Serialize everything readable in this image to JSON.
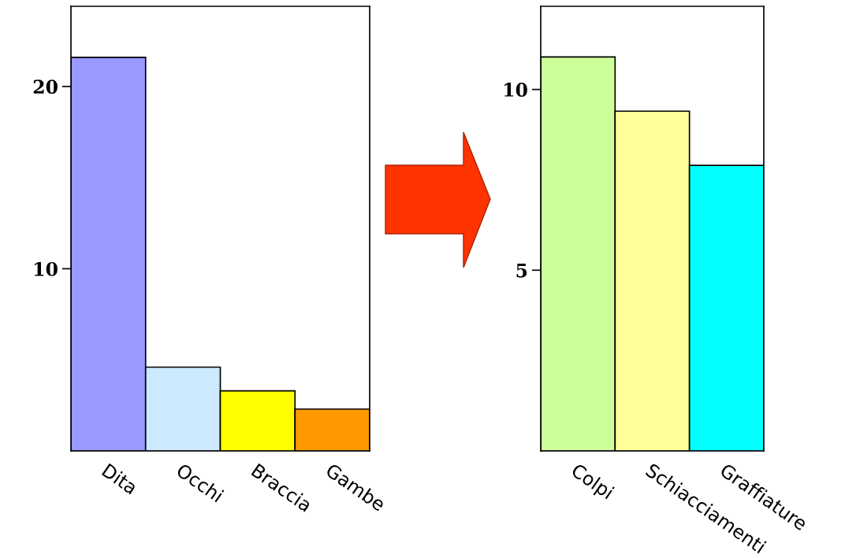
{
  "chart_data": [
    {
      "type": "bar",
      "categories": [
        "Dita",
        "Occhi",
        "Braccia",
        "Gambe"
      ],
      "values": [
        21.6,
        4.6,
        3.3,
        2.3
      ],
      "colors": [
        "#9999ff",
        "#cce9ff",
        "#ffff00",
        "#ff9900"
      ],
      "ylim": [
        0,
        24.4
      ],
      "yticks": [
        10,
        20
      ],
      "grid": false,
      "legend": false
    },
    {
      "type": "bar",
      "categories": [
        "Colpi",
        "Schiacciamenti",
        "Graffiature"
      ],
      "values": [
        10.9,
        9.4,
        7.9
      ],
      "colors": [
        "#ccff99",
        "#ffff99",
        "#00ffff"
      ],
      "ylim": [
        0,
        12.3
      ],
      "yticks": [
        5,
        10
      ],
      "grid": false,
      "legend": false
    }
  ]
}
